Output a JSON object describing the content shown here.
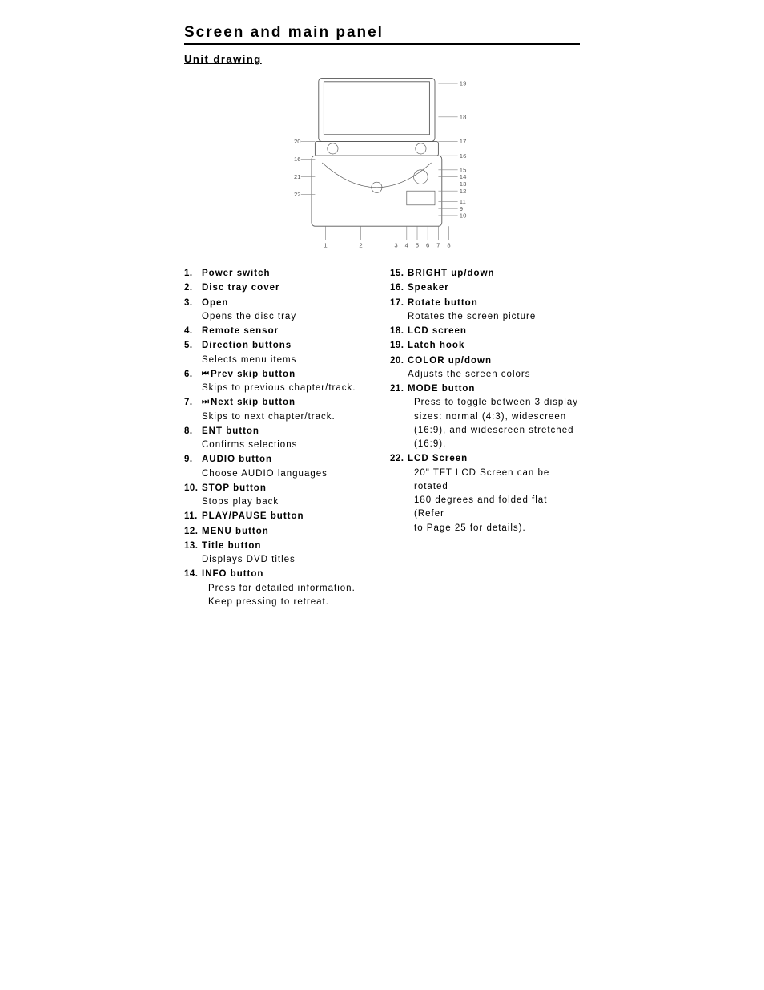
{
  "title": "Screen and main panel",
  "subtitle": "Unit drawing",
  "diagram": {
    "leftLabels": [
      {
        "n": "20",
        "y": 38
      },
      {
        "n": "16",
        "y": 48
      },
      {
        "n": "21",
        "y": 58
      },
      {
        "n": "22",
        "y": 68
      }
    ],
    "rightLabels": [
      {
        "n": "19",
        "y": 5
      },
      {
        "n": "18",
        "y": 24
      },
      {
        "n": "17",
        "y": 38
      },
      {
        "n": "16",
        "y": 46
      },
      {
        "n": "15",
        "y": 54
      },
      {
        "n": "14",
        "y": 58
      },
      {
        "n": "13",
        "y": 62
      },
      {
        "n": "12",
        "y": 66
      },
      {
        "n": "11",
        "y": 72
      },
      {
        "n": "9",
        "y": 76
      },
      {
        "n": "10",
        "y": 80
      }
    ],
    "bottomLabels": [
      {
        "n": "1",
        "x": 18
      },
      {
        "n": "2",
        "x": 38
      },
      {
        "n": "3",
        "x": 58
      },
      {
        "n": "4",
        "x": 64
      },
      {
        "n": "5",
        "x": 70
      },
      {
        "n": "6",
        "x": 76
      },
      {
        "n": "7",
        "x": 82
      },
      {
        "n": "8",
        "x": 88
      }
    ]
  },
  "left": [
    {
      "num": "1.",
      "label": "Power switch"
    },
    {
      "num": "2.",
      "label": "Disc tray cover"
    },
    {
      "num": "3.",
      "label": "Open",
      "desc": "Opens the disc tray"
    },
    {
      "num": "4.",
      "label": "Remote sensor"
    },
    {
      "num": "5.",
      "label": "Direction buttons",
      "desc": "Selects menu items"
    },
    {
      "num": "6.",
      "icon": "⏮",
      "label": "Prev skip button",
      "desc": "Skips to previous chapter/track."
    },
    {
      "num": "7.",
      "icon": "⏭",
      "label": "Next skip button",
      "desc": "Skips to next chapter/track."
    },
    {
      "num": "8.",
      "label": "ENT button",
      "desc": "Confirms selections"
    },
    {
      "num": "9.",
      "label": "AUDIO button",
      "desc": "Choose AUDIO languages"
    },
    {
      "num": "10.",
      "label": "STOP button",
      "desc": "Stops play back"
    },
    {
      "num": "11.",
      "label": "PLAY/PAUSE button"
    },
    {
      "num": "12.",
      "label": "MENU button"
    },
    {
      "num": "13.",
      "label": "Title button",
      "desc": "Displays DVD titles"
    },
    {
      "num": "14.",
      "label": " INFO button",
      "descIndent": [
        "Press for detailed information.",
        "Keep pressing to retreat."
      ]
    }
  ],
  "right": [
    {
      "num": "15.",
      "label": "BRIGHT up/down"
    },
    {
      "num": "16.",
      "label": "Speaker"
    },
    {
      "num": "17.",
      "label": "Rotate button",
      "desc": "Rotates the screen picture"
    },
    {
      "num": "18.",
      "label": "LCD screen"
    },
    {
      "num": "19.",
      "label": "Latch hook"
    },
    {
      "num": "20.",
      "label": "COLOR up/down",
      "desc": "Adjusts the screen colors"
    },
    {
      "num": "21.",
      "label": "MODE button",
      "descIndent": [
        "Press to toggle between 3 display",
        "sizes: normal (4:3), widescreen",
        "(16:9), and widescreen stretched",
        "(16:9)."
      ]
    },
    {
      "num": "22.",
      "label": "LCD Screen",
      "descIndent": [
        "20\" TFT LCD Screen can be rotated",
        "180 degrees and folded flat (Refer",
        "to Page 25 for details)."
      ]
    }
  ]
}
